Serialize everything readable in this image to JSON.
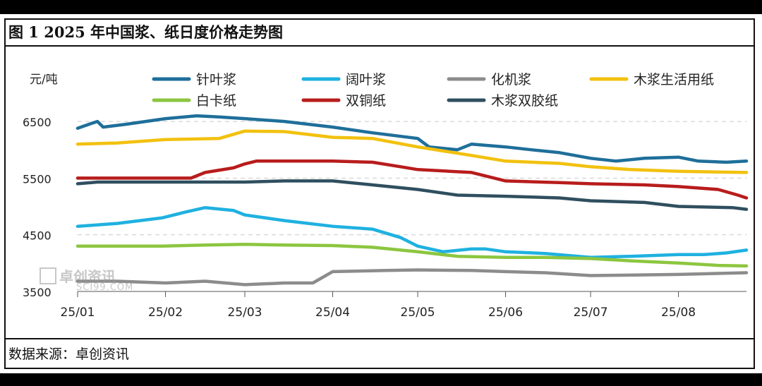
{
  "figure": {
    "title": "图 1 2025 年中国浆、纸日度价格走势图",
    "source_label": "数据来源：",
    "source_value": "卓创资讯"
  },
  "watermark": {
    "name": "卓创资讯",
    "url": "SCI99.COM"
  },
  "chart_data": {
    "type": "line",
    "title": "",
    "xlabel": "",
    "ylabel": "元/吨",
    "ylim": [
      3500,
      6800
    ],
    "yticks": [
      3500,
      4500,
      5500,
      6500
    ],
    "grid": "horizontal dashed",
    "legend_position": "top",
    "x_ticks": [
      "25/01",
      "25/02",
      "25/03",
      "25/04",
      "25/05",
      "25/06",
      "25/07",
      "25/08"
    ],
    "x_range": [
      "2025-01-01",
      "2025-08-25"
    ],
    "series": [
      {
        "name": "针叶浆",
        "color": "#1f6f9a",
        "points": [
          [
            "2025-01-01",
            6380
          ],
          [
            "2025-01-05",
            6450
          ],
          [
            "2025-01-08",
            6500
          ],
          [
            "2025-01-10",
            6400
          ],
          [
            "2025-01-18",
            6450
          ],
          [
            "2025-01-25",
            6500
          ],
          [
            "2025-02-01",
            6550
          ],
          [
            "2025-02-12",
            6600
          ],
          [
            "2025-02-20",
            6580
          ],
          [
            "2025-03-01",
            6550
          ],
          [
            "2025-03-15",
            6500
          ],
          [
            "2025-04-01",
            6400
          ],
          [
            "2025-04-15",
            6300
          ],
          [
            "2025-05-01",
            6200
          ],
          [
            "2025-05-05",
            6050
          ],
          [
            "2025-05-15",
            6000
          ],
          [
            "2025-05-20",
            6100
          ],
          [
            "2025-06-01",
            6050
          ],
          [
            "2025-06-10",
            6000
          ],
          [
            "2025-06-20",
            5950
          ],
          [
            "2025-07-01",
            5850
          ],
          [
            "2025-07-10",
            5800
          ],
          [
            "2025-07-20",
            5850
          ],
          [
            "2025-08-01",
            5870
          ],
          [
            "2025-08-08",
            5800
          ],
          [
            "2025-08-18",
            5780
          ],
          [
            "2025-08-25",
            5800
          ]
        ]
      },
      {
        "name": "阔叶浆",
        "color": "#1fb1e0",
        "points": [
          [
            "2025-01-01",
            4650
          ],
          [
            "2025-01-15",
            4700
          ],
          [
            "2025-01-31",
            4800
          ],
          [
            "2025-02-08",
            4900
          ],
          [
            "2025-02-15",
            4980
          ],
          [
            "2025-02-25",
            4930
          ],
          [
            "2025-03-01",
            4850
          ],
          [
            "2025-03-15",
            4750
          ],
          [
            "2025-04-01",
            4650
          ],
          [
            "2025-04-15",
            4600
          ],
          [
            "2025-04-25",
            4450
          ],
          [
            "2025-05-01",
            4300
          ],
          [
            "2025-05-10",
            4200
          ],
          [
            "2025-05-20",
            4250
          ],
          [
            "2025-05-25",
            4250
          ],
          [
            "2025-06-01",
            4200
          ],
          [
            "2025-06-15",
            4170
          ],
          [
            "2025-07-01",
            4100
          ],
          [
            "2025-07-15",
            4120
          ],
          [
            "2025-08-01",
            4150
          ],
          [
            "2025-08-10",
            4150
          ],
          [
            "2025-08-18",
            4180
          ],
          [
            "2025-08-25",
            4230
          ]
        ]
      },
      {
        "name": "化机浆",
        "color": "#8c8c8c",
        "points": [
          [
            "2025-01-01",
            3680
          ],
          [
            "2025-01-15",
            3680
          ],
          [
            "2025-02-01",
            3650
          ],
          [
            "2025-02-15",
            3680
          ],
          [
            "2025-03-01",
            3620
          ],
          [
            "2025-03-15",
            3650
          ],
          [
            "2025-03-25",
            3650
          ],
          [
            "2025-04-01",
            3850
          ],
          [
            "2025-04-20",
            3870
          ],
          [
            "2025-05-01",
            3880
          ],
          [
            "2025-05-20",
            3870
          ],
          [
            "2025-06-01",
            3850
          ],
          [
            "2025-06-15",
            3830
          ],
          [
            "2025-07-01",
            3780
          ],
          [
            "2025-08-01",
            3800
          ],
          [
            "2025-08-25",
            3830
          ]
        ]
      },
      {
        "name": "木浆生活用纸",
        "color": "#f2c10f",
        "points": [
          [
            "2025-01-01",
            6100
          ],
          [
            "2025-01-15",
            6120
          ],
          [
            "2025-02-01",
            6180
          ],
          [
            "2025-02-20",
            6200
          ],
          [
            "2025-03-01",
            6330
          ],
          [
            "2025-03-15",
            6320
          ],
          [
            "2025-04-01",
            6220
          ],
          [
            "2025-04-15",
            6200
          ],
          [
            "2025-05-01",
            6050
          ],
          [
            "2025-05-20",
            5900
          ],
          [
            "2025-06-01",
            5800
          ],
          [
            "2025-06-20",
            5760
          ],
          [
            "2025-07-01",
            5700
          ],
          [
            "2025-07-15",
            5650
          ],
          [
            "2025-08-01",
            5620
          ],
          [
            "2025-08-25",
            5600
          ]
        ]
      },
      {
        "name": "白卡纸",
        "color": "#8cc63f",
        "points": [
          [
            "2025-01-01",
            4300
          ],
          [
            "2025-01-31",
            4300
          ],
          [
            "2025-02-15",
            4320
          ],
          [
            "2025-03-01",
            4330
          ],
          [
            "2025-03-15",
            4320
          ],
          [
            "2025-04-01",
            4310
          ],
          [
            "2025-04-15",
            4280
          ],
          [
            "2025-05-01",
            4200
          ],
          [
            "2025-05-15",
            4120
          ],
          [
            "2025-06-01",
            4100
          ],
          [
            "2025-06-15",
            4100
          ],
          [
            "2025-07-01",
            4080
          ],
          [
            "2025-07-15",
            4040
          ],
          [
            "2025-08-01",
            4000
          ],
          [
            "2025-08-15",
            3960
          ],
          [
            "2025-08-25",
            3950
          ]
        ]
      },
      {
        "name": "双铜纸",
        "color": "#b81c1c",
        "points": [
          [
            "2025-01-01",
            5500
          ],
          [
            "2025-02-10",
            5500
          ],
          [
            "2025-02-15",
            5600
          ],
          [
            "2025-02-25",
            5680
          ],
          [
            "2025-03-01",
            5750
          ],
          [
            "2025-03-05",
            5800
          ],
          [
            "2025-04-01",
            5800
          ],
          [
            "2025-04-15",
            5780
          ],
          [
            "2025-04-25",
            5700
          ],
          [
            "2025-05-01",
            5650
          ],
          [
            "2025-05-20",
            5600
          ],
          [
            "2025-06-01",
            5450
          ],
          [
            "2025-06-20",
            5420
          ],
          [
            "2025-07-01",
            5400
          ],
          [
            "2025-07-20",
            5380
          ],
          [
            "2025-08-01",
            5350
          ],
          [
            "2025-08-15",
            5300
          ],
          [
            "2025-08-22",
            5200
          ],
          [
            "2025-08-25",
            5150
          ]
        ]
      },
      {
        "name": "木浆双胶纸",
        "color": "#2f4f5f",
        "points": [
          [
            "2025-01-01",
            5400
          ],
          [
            "2025-01-08",
            5430
          ],
          [
            "2025-02-01",
            5430
          ],
          [
            "2025-03-01",
            5430
          ],
          [
            "2025-03-15",
            5450
          ],
          [
            "2025-04-01",
            5450
          ],
          [
            "2025-04-15",
            5380
          ],
          [
            "2025-05-01",
            5300
          ],
          [
            "2025-05-15",
            5200
          ],
          [
            "2025-06-01",
            5180
          ],
          [
            "2025-06-20",
            5150
          ],
          [
            "2025-07-01",
            5100
          ],
          [
            "2025-07-20",
            5070
          ],
          [
            "2025-08-01",
            5000
          ],
          [
            "2025-08-20",
            4980
          ],
          [
            "2025-08-25",
            4950
          ]
        ]
      }
    ]
  }
}
